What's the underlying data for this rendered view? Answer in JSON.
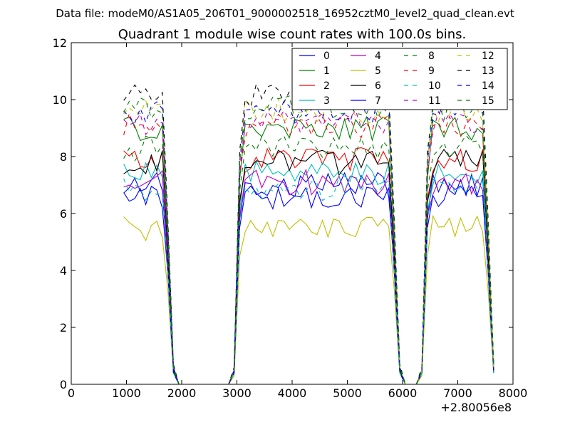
{
  "chart_data": {
    "type": "line",
    "suptitle": "Data file: modeM0/AS1A05_206T01_9000002518_16952cztM0_level2_quad_clean.evt",
    "title": "Quadrant 1 module wise count rates with 100.0s bins.",
    "xlabel": "",
    "ylabel": "",
    "x_offset_label": "+2.80056e8",
    "xlim": [
      0,
      8000
    ],
    "ylim": [
      0,
      12
    ],
    "xticks": [
      0,
      1000,
      2000,
      3000,
      4000,
      5000,
      6000,
      7000,
      8000
    ],
    "yticks": [
      0,
      2,
      4,
      6,
      8,
      10,
      12
    ],
    "grid": false,
    "legend_position": "top-right",
    "legend_columns": 4,
    "x": [
      950,
      1050,
      1150,
      1250,
      1350,
      1450,
      1550,
      1650,
      1750,
      1850,
      1950,
      2050,
      2150,
      2250,
      2350,
      2450,
      2550,
      2650,
      2750,
      2850,
      2950,
      3050,
      3150,
      3250,
      3350,
      3450,
      3550,
      3650,
      3750,
      3850,
      3950,
      4050,
      4150,
      4250,
      4350,
      4450,
      4550,
      4650,
      4750,
      4850,
      4950,
      5050,
      5150,
      5250,
      5350,
      5450,
      5550,
      5650,
      5750,
      5850,
      5950,
      6050,
      6150,
      6250,
      6350,
      6450,
      6550,
      6650,
      6750,
      6850,
      6950,
      7050,
      7150,
      7250,
      7350,
      7450,
      7550,
      7650
    ],
    "segments": [
      [
        0,
        9
      ],
      [
        20,
        50
      ],
      [
        54,
        67
      ]
    ],
    "series": [
      {
        "name": "0",
        "color": "#0000ff",
        "dash": "solid",
        "level": 7.0,
        "rise": [
          0.4,
          5.8
        ],
        "drop": [
          4.2,
          0.5
        ]
      },
      {
        "name": "1",
        "color": "#008000",
        "dash": "solid",
        "level": 9.0,
        "rise": [
          0.5,
          7.2
        ],
        "drop": [
          5.0,
          0.6
        ]
      },
      {
        "name": "2",
        "color": "#ff0000",
        "dash": "solid",
        "level": 7.9,
        "rise": [
          0.4,
          6.5
        ],
        "drop": [
          4.6,
          0.5
        ]
      },
      {
        "name": "3",
        "color": "#00bfbf",
        "dash": "solid",
        "level": 7.4,
        "rise": [
          0.4,
          6.1
        ],
        "drop": [
          4.3,
          0.4
        ]
      },
      {
        "name": "4",
        "color": "#bf00bf",
        "dash": "solid",
        "level": 7.1,
        "rise": [
          0.4,
          5.9
        ],
        "drop": [
          4.1,
          0.5
        ]
      },
      {
        "name": "5",
        "color": "#bfbf00",
        "dash": "solid",
        "level": 5.5,
        "rise": [
          0.3,
          4.5
        ],
        "drop": [
          3.3,
          0.4
        ]
      },
      {
        "name": "6",
        "color": "#000000",
        "dash": "solid",
        "level": 7.8,
        "rise": [
          0.4,
          6.4
        ],
        "drop": [
          4.5,
          0.5
        ]
      },
      {
        "name": "7",
        "color": "#0000ff",
        "dash": "solid",
        "level": 6.6,
        "rise": [
          0.4,
          5.5
        ],
        "drop": [
          3.9,
          0.4
        ]
      },
      {
        "name": "8",
        "color": "#008000",
        "dash": "dashed",
        "level": 8.3,
        "rise": [
          0.5,
          6.8
        ],
        "drop": [
          4.8,
          0.6
        ]
      },
      {
        "name": "9",
        "color": "#ff0000",
        "dash": "dashed",
        "level": 9.1,
        "rise": [
          0.5,
          7.4
        ],
        "drop": [
          5.2,
          0.6
        ]
      },
      {
        "name": "10",
        "color": "#00bfbf",
        "dash": "dashed",
        "level": 6.9,
        "rise": [
          0.4,
          5.7
        ],
        "drop": [
          4.0,
          0.4
        ]
      },
      {
        "name": "11",
        "color": "#bf00bf",
        "dash": "dashed",
        "level": 9.2,
        "rise": [
          0.5,
          7.5
        ],
        "drop": [
          5.3,
          0.6
        ]
      },
      {
        "name": "12",
        "color": "#bfbf00",
        "dash": "dashed",
        "level": 9.6,
        "rise": [
          0.5,
          7.8
        ],
        "drop": [
          5.5,
          0.6
        ]
      },
      {
        "name": "13",
        "color": "#000000",
        "dash": "dashed",
        "level": 10.1,
        "rise": [
          0.6,
          8.2
        ],
        "drop": [
          5.8,
          0.7
        ]
      },
      {
        "name": "14",
        "color": "#0000ff",
        "dash": "dashed",
        "level": 9.6,
        "rise": [
          0.5,
          7.8
        ],
        "drop": [
          5.5,
          0.6
        ]
      },
      {
        "name": "15",
        "color": "#008000",
        "dash": "dashed",
        "level": 9.7,
        "rise": [
          0.5,
          7.9
        ],
        "drop": [
          5.6,
          0.6
        ]
      }
    ]
  }
}
